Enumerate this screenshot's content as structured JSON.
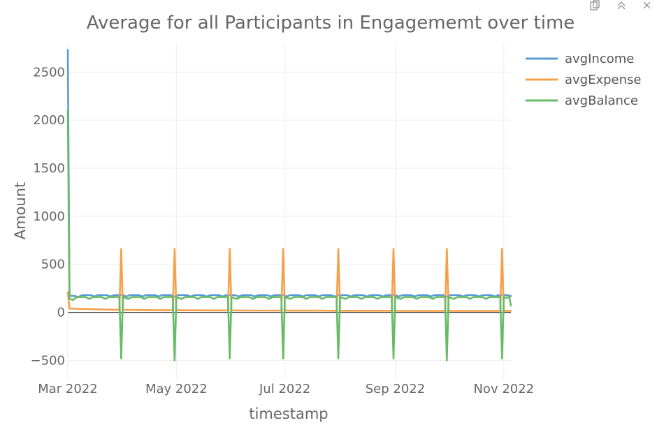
{
  "toolbar": {
    "icons": [
      "download-plot-icon",
      "autoscale-icon",
      "close-icon"
    ]
  },
  "chart_data": {
    "type": "line",
    "title": "Average for all Participants in Engagememt over time",
    "xlabel": "timestamp",
    "ylabel": "Amount",
    "x_tick_labels": [
      "Mar 2022",
      "May 2022",
      "Jul 2022",
      "Sep 2022",
      "Nov 2022"
    ],
    "x_tick_dates": [
      "2022-03-01",
      "2022-05-01",
      "2022-07-01",
      "2022-09-01",
      "2022-11-01"
    ],
    "xlim": [
      "2022-03-01",
      "2022-11-05"
    ],
    "y_tick_labels": [
      "−500",
      "0",
      "500",
      "1000",
      "1500",
      "2000",
      "2500"
    ],
    "y_ticks": [
      -500,
      0,
      500,
      1000,
      1500,
      2000,
      2500
    ],
    "ylim": [
      -700,
      2800
    ],
    "grid": true,
    "legend_position": "top-right",
    "series": [
      {
        "name": "avgIncome",
        "color": "#5b9bd5",
        "points": [
          [
            "2022-03-01",
            2730
          ],
          [
            "2022-03-02",
            175
          ],
          [
            "2022-03-05",
            170
          ],
          [
            "2022-03-07",
            160
          ],
          [
            "2022-03-09",
            180
          ],
          [
            "2022-03-14",
            180
          ],
          [
            "2022-03-16",
            165
          ],
          [
            "2022-03-18",
            180
          ],
          [
            "2022-03-23",
            180
          ],
          [
            "2022-03-25",
            165
          ],
          [
            "2022-03-27",
            180
          ],
          [
            "2022-04-01",
            180
          ],
          [
            "2022-04-03",
            165
          ],
          [
            "2022-04-05",
            180
          ],
          [
            "2022-04-10",
            180
          ],
          [
            "2022-04-12",
            165
          ],
          [
            "2022-04-14",
            180
          ],
          [
            "2022-04-19",
            180
          ],
          [
            "2022-04-21",
            165
          ],
          [
            "2022-04-23",
            180
          ],
          [
            "2022-04-28",
            180
          ],
          [
            "2022-04-30",
            165
          ],
          [
            "2022-05-02",
            180
          ],
          [
            "2022-05-07",
            180
          ],
          [
            "2022-05-09",
            165
          ],
          [
            "2022-05-11",
            180
          ],
          [
            "2022-05-16",
            180
          ],
          [
            "2022-05-18",
            165
          ],
          [
            "2022-05-20",
            180
          ],
          [
            "2022-05-25",
            180
          ],
          [
            "2022-05-27",
            165
          ],
          [
            "2022-05-29",
            180
          ],
          [
            "2022-06-03",
            180
          ],
          [
            "2022-06-05",
            165
          ],
          [
            "2022-06-07",
            180
          ],
          [
            "2022-06-12",
            180
          ],
          [
            "2022-06-14",
            165
          ],
          [
            "2022-06-16",
            180
          ],
          [
            "2022-06-21",
            180
          ],
          [
            "2022-06-23",
            165
          ],
          [
            "2022-06-25",
            180
          ],
          [
            "2022-06-30",
            180
          ],
          [
            "2022-07-02",
            165
          ],
          [
            "2022-07-04",
            180
          ],
          [
            "2022-07-09",
            180
          ],
          [
            "2022-07-11",
            165
          ],
          [
            "2022-07-13",
            180
          ],
          [
            "2022-07-18",
            180
          ],
          [
            "2022-07-20",
            165
          ],
          [
            "2022-07-22",
            180
          ],
          [
            "2022-07-27",
            180
          ],
          [
            "2022-07-29",
            165
          ],
          [
            "2022-07-31",
            180
          ],
          [
            "2022-08-05",
            180
          ],
          [
            "2022-08-07",
            165
          ],
          [
            "2022-08-09",
            180
          ],
          [
            "2022-08-14",
            180
          ],
          [
            "2022-08-16",
            165
          ],
          [
            "2022-08-18",
            180
          ],
          [
            "2022-08-23",
            180
          ],
          [
            "2022-08-25",
            165
          ],
          [
            "2022-08-27",
            180
          ],
          [
            "2022-09-01",
            180
          ],
          [
            "2022-09-03",
            165
          ],
          [
            "2022-09-05",
            180
          ],
          [
            "2022-09-10",
            180
          ],
          [
            "2022-09-12",
            165
          ],
          [
            "2022-09-14",
            180
          ],
          [
            "2022-09-19",
            180
          ],
          [
            "2022-09-21",
            165
          ],
          [
            "2022-09-23",
            180
          ],
          [
            "2022-09-28",
            180
          ],
          [
            "2022-09-30",
            165
          ],
          [
            "2022-10-02",
            180
          ],
          [
            "2022-10-07",
            180
          ],
          [
            "2022-10-09",
            165
          ],
          [
            "2022-10-11",
            180
          ],
          [
            "2022-10-16",
            180
          ],
          [
            "2022-10-18",
            165
          ],
          [
            "2022-10-20",
            180
          ],
          [
            "2022-10-25",
            180
          ],
          [
            "2022-10-27",
            165
          ],
          [
            "2022-10-29",
            180
          ],
          [
            "2022-11-03",
            180
          ],
          [
            "2022-11-04",
            175
          ],
          [
            "2022-11-05",
            170
          ]
        ]
      },
      {
        "name": "avgExpense",
        "color": "#f5a04a",
        "points": [
          [
            "2022-03-01",
            210
          ],
          [
            "2022-03-02",
            40
          ],
          [
            "2022-03-08",
            36
          ],
          [
            "2022-03-15",
            33
          ],
          [
            "2022-03-22",
            30
          ],
          [
            "2022-03-29",
            27
          ],
          [
            "2022-03-30",
            27
          ],
          [
            "2022-03-31",
            660
          ],
          [
            "2022-04-01",
            26
          ],
          [
            "2022-04-10",
            25
          ],
          [
            "2022-04-20",
            23
          ],
          [
            "2022-04-29",
            22
          ],
          [
            "2022-04-30",
            660
          ],
          [
            "2022-05-01",
            22
          ],
          [
            "2022-05-10",
            21
          ],
          [
            "2022-05-20",
            20
          ],
          [
            "2022-05-30",
            20
          ],
          [
            "2022-05-31",
            660
          ],
          [
            "2022-06-01",
            20
          ],
          [
            "2022-06-10",
            19
          ],
          [
            "2022-06-20",
            19
          ],
          [
            "2022-06-29",
            18
          ],
          [
            "2022-06-30",
            660
          ],
          [
            "2022-07-01",
            18
          ],
          [
            "2022-07-10",
            18
          ],
          [
            "2022-07-20",
            18
          ],
          [
            "2022-07-30",
            17
          ],
          [
            "2022-07-31",
            660
          ],
          [
            "2022-08-01",
            17
          ],
          [
            "2022-08-10",
            17
          ],
          [
            "2022-08-20",
            17
          ],
          [
            "2022-08-30",
            17
          ],
          [
            "2022-08-31",
            660
          ],
          [
            "2022-09-01",
            17
          ],
          [
            "2022-09-10",
            16
          ],
          [
            "2022-09-20",
            16
          ],
          [
            "2022-09-29",
            16
          ],
          [
            "2022-09-30",
            660
          ],
          [
            "2022-10-01",
            16
          ],
          [
            "2022-10-10",
            16
          ],
          [
            "2022-10-20",
            16
          ],
          [
            "2022-10-30",
            16
          ],
          [
            "2022-10-31",
            660
          ],
          [
            "2022-11-01",
            16
          ],
          [
            "2022-11-05",
            16
          ]
        ]
      },
      {
        "name": "avgBalance",
        "color": "#66bb66",
        "points": [
          [
            "2022-03-01",
            2100
          ],
          [
            "2022-03-02",
            140
          ],
          [
            "2022-03-04",
            130
          ],
          [
            "2022-03-06",
            160
          ],
          [
            "2022-03-11",
            160
          ],
          [
            "2022-03-13",
            140
          ],
          [
            "2022-03-15",
            160
          ],
          [
            "2022-03-20",
            160
          ],
          [
            "2022-03-22",
            140
          ],
          [
            "2022-03-24",
            160
          ],
          [
            "2022-03-29",
            160
          ],
          [
            "2022-03-30",
            160
          ],
          [
            "2022-03-31",
            -480
          ],
          [
            "2022-04-01",
            160
          ],
          [
            "2022-04-04",
            140
          ],
          [
            "2022-04-06",
            160
          ],
          [
            "2022-04-11",
            160
          ],
          [
            "2022-04-13",
            140
          ],
          [
            "2022-04-15",
            160
          ],
          [
            "2022-04-20",
            160
          ],
          [
            "2022-04-22",
            140
          ],
          [
            "2022-04-24",
            160
          ],
          [
            "2022-04-29",
            160
          ],
          [
            "2022-04-30",
            -500
          ],
          [
            "2022-05-01",
            160
          ],
          [
            "2022-05-04",
            140
          ],
          [
            "2022-05-06",
            160
          ],
          [
            "2022-05-11",
            160
          ],
          [
            "2022-05-13",
            140
          ],
          [
            "2022-05-15",
            160
          ],
          [
            "2022-05-20",
            160
          ],
          [
            "2022-05-22",
            140
          ],
          [
            "2022-05-24",
            160
          ],
          [
            "2022-05-30",
            160
          ],
          [
            "2022-05-31",
            -480
          ],
          [
            "2022-06-01",
            160
          ],
          [
            "2022-06-04",
            140
          ],
          [
            "2022-06-06",
            160
          ],
          [
            "2022-06-11",
            160
          ],
          [
            "2022-06-13",
            140
          ],
          [
            "2022-06-15",
            160
          ],
          [
            "2022-06-20",
            160
          ],
          [
            "2022-06-22",
            140
          ],
          [
            "2022-06-24",
            160
          ],
          [
            "2022-06-29",
            160
          ],
          [
            "2022-06-30",
            -480
          ],
          [
            "2022-07-01",
            160
          ],
          [
            "2022-07-04",
            140
          ],
          [
            "2022-07-06",
            160
          ],
          [
            "2022-07-11",
            160
          ],
          [
            "2022-07-13",
            140
          ],
          [
            "2022-07-15",
            160
          ],
          [
            "2022-07-20",
            160
          ],
          [
            "2022-07-22",
            140
          ],
          [
            "2022-07-24",
            160
          ],
          [
            "2022-07-30",
            160
          ],
          [
            "2022-07-31",
            -480
          ],
          [
            "2022-08-01",
            160
          ],
          [
            "2022-08-04",
            140
          ],
          [
            "2022-08-06",
            160
          ],
          [
            "2022-08-11",
            160
          ],
          [
            "2022-08-13",
            140
          ],
          [
            "2022-08-15",
            160
          ],
          [
            "2022-08-20",
            160
          ],
          [
            "2022-08-22",
            140
          ],
          [
            "2022-08-24",
            160
          ],
          [
            "2022-08-30",
            160
          ],
          [
            "2022-08-31",
            -480
          ],
          [
            "2022-09-01",
            160
          ],
          [
            "2022-09-04",
            140
          ],
          [
            "2022-09-06",
            160
          ],
          [
            "2022-09-11",
            160
          ],
          [
            "2022-09-13",
            140
          ],
          [
            "2022-09-15",
            160
          ],
          [
            "2022-09-20",
            160
          ],
          [
            "2022-09-22",
            140
          ],
          [
            "2022-09-24",
            160
          ],
          [
            "2022-09-29",
            160
          ],
          [
            "2022-09-30",
            -500
          ],
          [
            "2022-10-01",
            160
          ],
          [
            "2022-10-04",
            140
          ],
          [
            "2022-10-06",
            160
          ],
          [
            "2022-10-11",
            160
          ],
          [
            "2022-10-13",
            140
          ],
          [
            "2022-10-15",
            160
          ],
          [
            "2022-10-20",
            160
          ],
          [
            "2022-10-22",
            140
          ],
          [
            "2022-10-24",
            160
          ],
          [
            "2022-10-30",
            160
          ],
          [
            "2022-10-31",
            -480
          ],
          [
            "2022-11-01",
            160
          ],
          [
            "2022-11-03",
            150
          ],
          [
            "2022-11-04",
            170
          ],
          [
            "2022-11-05",
            70
          ]
        ]
      }
    ]
  }
}
